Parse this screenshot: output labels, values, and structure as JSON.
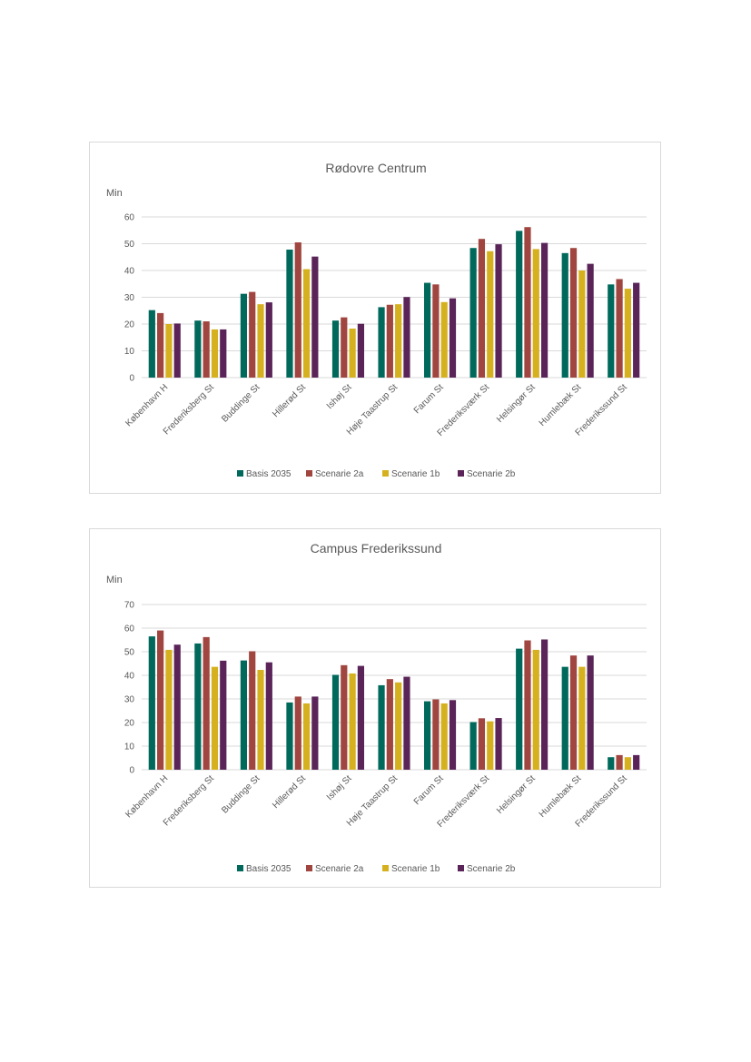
{
  "chart_data": [
    {
      "type": "bar",
      "title": "Rødovre Centrum",
      "ylabel": "Min",
      "xlabel": "",
      "ylim": [
        0,
        60
      ],
      "yticks": [
        0,
        10,
        20,
        30,
        40,
        50,
        60
      ],
      "grid": true,
      "legend_position": "bottom",
      "categories": [
        "København H",
        "Frederiksberg St",
        "Buddinge St",
        "Hillerød St",
        "Ishøj St",
        "Høje Taastrup St",
        "Farum St",
        "Frederiksværk St",
        "Helsingør St",
        "Humlebæk St",
        "Frederikssund St"
      ],
      "series": [
        {
          "name": "Basis 2035",
          "color": "#00695c",
          "values": [
            25.2,
            21.3,
            31.3,
            47.8,
            21.3,
            26.3,
            35.4,
            48.4,
            54.8,
            46.5,
            34.8
          ]
        },
        {
          "name": "Scenarie 2a",
          "color": "#a0453f",
          "values": [
            24.1,
            21.0,
            32.0,
            50.5,
            22.5,
            27.2,
            34.8,
            51.8,
            56.2,
            48.4,
            36.8
          ]
        },
        {
          "name": "Scenarie 1b",
          "color": "#d6b11f",
          "values": [
            20.0,
            18.0,
            27.4,
            40.5,
            18.3,
            27.4,
            28.2,
            47.2,
            48.0,
            40.0,
            33.2
          ]
        },
        {
          "name": "Scenarie 2b",
          "color": "#5a2459",
          "values": [
            20.2,
            18.0,
            28.1,
            45.2,
            20.1,
            30.1,
            29.6,
            49.8,
            50.3,
            42.5,
            35.4
          ]
        }
      ]
    },
    {
      "type": "bar",
      "title": "Campus Frederikssund",
      "ylabel": "Min",
      "xlabel": "",
      "ylim": [
        0,
        70
      ],
      "yticks": [
        0,
        10,
        20,
        30,
        40,
        50,
        60,
        70
      ],
      "grid": true,
      "legend_position": "bottom",
      "categories": [
        "København H",
        "Frederiksberg St",
        "Buddinge St",
        "Hillerød St",
        "Ishøj St",
        "Høje Taastrup St",
        "Farum St",
        "Frederiksværk St",
        "Helsingør St",
        "Humlebæk St",
        "Frederikssund St"
      ],
      "series": [
        {
          "name": "Basis 2035",
          "color": "#00695c",
          "values": [
            56.5,
            53.5,
            46.3,
            28.5,
            40.2,
            35.8,
            29.0,
            20.2,
            51.3,
            43.6,
            5.3
          ]
        },
        {
          "name": "Scenarie 2a",
          "color": "#a0453f",
          "values": [
            59.0,
            56.2,
            50.2,
            31.0,
            44.3,
            38.4,
            29.8,
            21.8,
            54.8,
            48.4,
            6.2
          ]
        },
        {
          "name": "Scenarie 1b",
          "color": "#d6b11f",
          "values": [
            50.8,
            43.6,
            42.3,
            28.1,
            40.8,
            37.0,
            28.1,
            20.5,
            50.8,
            43.6,
            5.3
          ]
        },
        {
          "name": "Scenarie 2b",
          "color": "#5a2459",
          "values": [
            53.0,
            46.2,
            45.5,
            31.0,
            44.0,
            39.4,
            29.5,
            21.9,
            55.2,
            48.4,
            6.2
          ]
        }
      ]
    }
  ]
}
